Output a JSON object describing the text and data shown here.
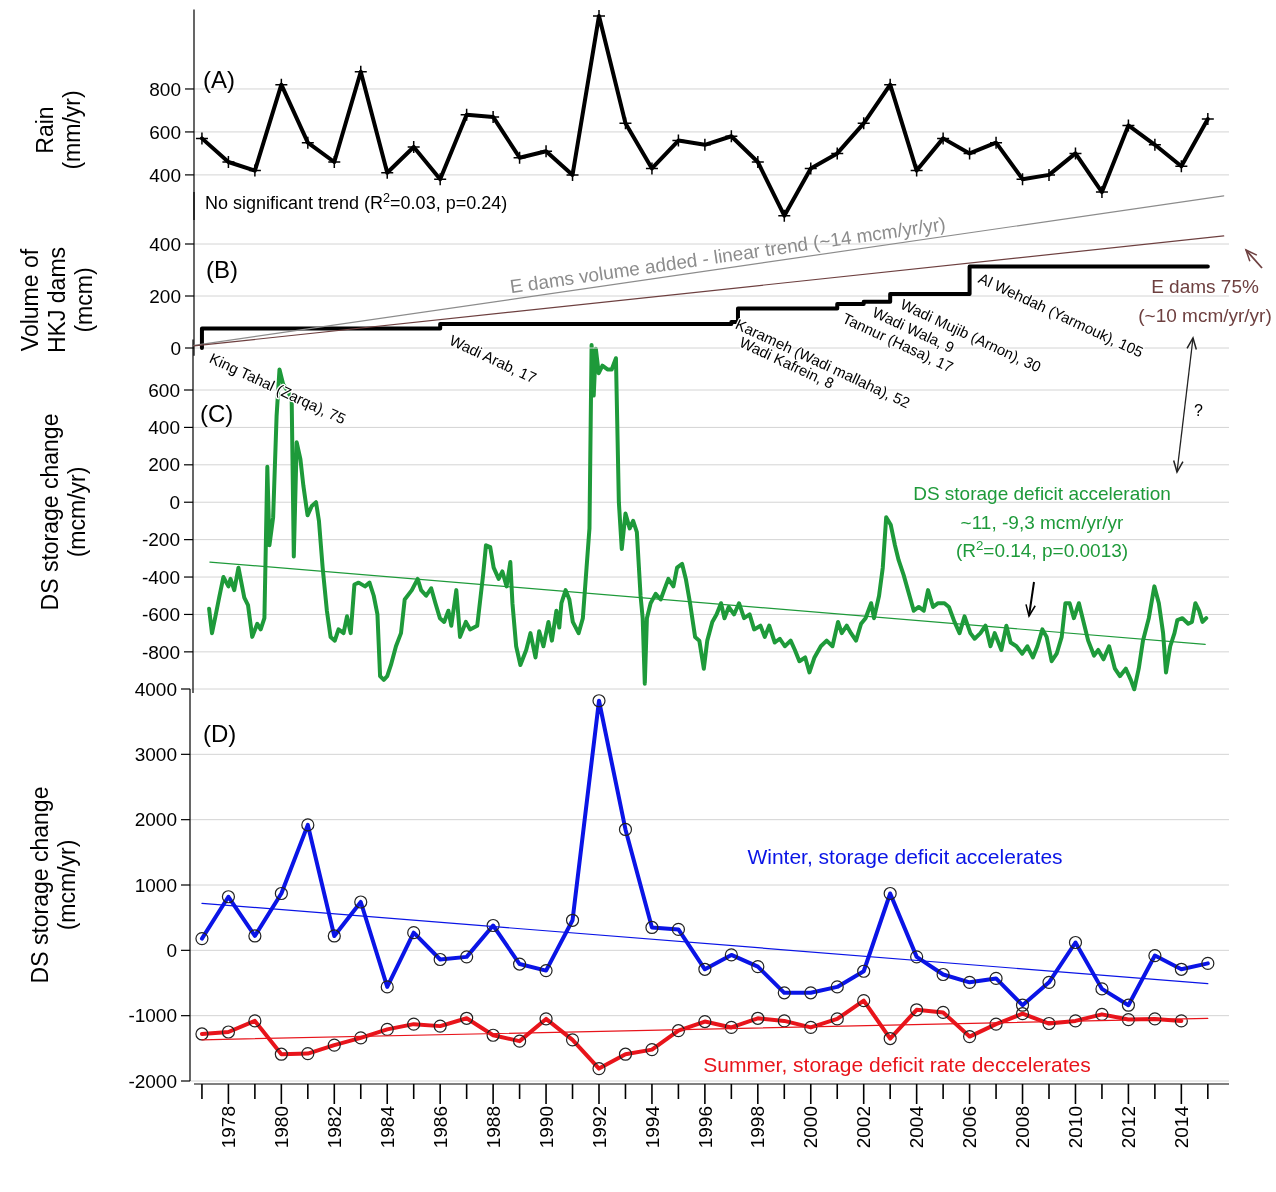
{
  "chart_data": [
    {
      "type": "line",
      "title": "(A)",
      "ylabel": "Rain (mm/yr)",
      "xlim": [
        1976.7,
        2015.8
      ],
      "ylim": [
        190,
        1170
      ],
      "yticks": [
        400,
        600,
        800
      ],
      "grid": "y",
      "tick_labels": "y",
      "x": [
        1977,
        1978,
        1979,
        1980,
        1981,
        1982,
        1983,
        1984,
        1985,
        1986,
        1987,
        1988,
        1989,
        1990,
        1991,
        1992,
        1993,
        1994,
        1995,
        1996,
        1997,
        1998,
        1999,
        2000,
        2001,
        2002,
        2003,
        2004,
        2005,
        2006,
        2007,
        2008,
        2009,
        2010,
        2011,
        2012,
        2013,
        2014,
        2015
      ],
      "series": [
        {
          "color": "#000000",
          "marker": "cross",
          "values": [
            570,
            460,
            420,
            820,
            550,
            460,
            880,
            410,
            530,
            380,
            680,
            670,
            480,
            510,
            400,
            1140,
            640,
            430,
            560,
            540,
            580,
            460,
            210,
            430,
            500,
            640,
            820,
            420,
            570,
            500,
            550,
            380,
            400,
            500,
            320,
            630,
            540,
            440,
            660
          ]
        }
      ],
      "annotations": [
        "No significant trend (R$^{2}$=0.03,  p=0.24)"
      ]
    },
    {
      "type": "step",
      "title": "(B)",
      "ylabel": "Volume of HKJ dams (mcm)",
      "xlim": [
        1976.7,
        2015.8
      ],
      "ylim": [
        -30,
        600
      ],
      "yticks": [
        0,
        200,
        400
      ],
      "grid": "y",
      "tick_labels": "y",
      "series": [
        {
          "color": "#000000",
          "x": [
            1977,
            1977,
            1986,
            1997,
            1997.25,
            2001,
            2002,
            2003,
            2006,
            2015
          ],
          "values": [
            0,
            75,
            92,
            100,
            152,
            169,
            178,
            208,
            313,
            313
          ]
        },
        {
          "type": "line",
          "name": "E dams volume added - linear trend (~14 mcm/yr/yr)",
          "color": "#8c8c8c",
          "x": [
            1976.7,
            2015.6
          ],
          "values": [
            10,
            585
          ]
        },
        {
          "type": "line",
          "name": "E dams 75% (~10 mcm/yr/yr)",
          "color": "#6e4040",
          "x": [
            1976.7,
            2015.6
          ],
          "values": [
            8,
            431
          ]
        }
      ],
      "annotations": [
        "King Tahal (Zarqa), 75",
        "Wadi Arab, 17",
        "Karameh (Wadi mallaha), 52",
        "Wadi Kafrein, 8",
        "Tannur (Hasa), 17",
        "Wadi Wala, 9",
        "Wadi Mujib (Arnon), 30",
        "Al Wehdah (Yarmouk), 105"
      ]
    },
    {
      "type": "line",
      "title": "(C)",
      "ylabel": "DS storage change (mcm/yr)",
      "xlim": [
        1976.7,
        2015.8
      ],
      "ylim": [
        -1020,
        870
      ],
      "yticks": [
        -800,
        -600,
        -400,
        -200,
        0,
        200,
        400,
        600
      ],
      "grid": "y",
      "tick_labels": "y",
      "series": [
        {
          "color": "#1e9a3a",
          "x": [
            1977.27,
            1977.38,
            1977.51,
            1977.65,
            1977.81,
            1978,
            1978.08,
            1978.22,
            1978.38,
            1978.6,
            1978.74,
            1978.9,
            1979.09,
            1979.22,
            1979.36,
            1979.47,
            1979.55,
            1979.69,
            1979.82,
            1979.93,
            1980.07,
            1980.26,
            1980.39,
            1980.47,
            1980.58,
            1980.72,
            1980.83,
            1980.99,
            1981.15,
            1981.31,
            1981.42,
            1981.56,
            1981.72,
            1981.86,
            1982.02,
            1982.16,
            1982.35,
            1982.48,
            1982.62,
            1982.76,
            1982.92,
            1983.16,
            1983.33,
            1983.49,
            1983.63,
            1983.73,
            1983.87,
            1984,
            1984.14,
            1984.33,
            1984.52,
            1984.66,
            1984.93,
            1985.15,
            1985.28,
            1985.47,
            1985.66,
            1985.82,
            1985.99,
            1986.15,
            1986.31,
            1986.42,
            1986.61,
            1986.75,
            1986.97,
            1987.13,
            1987.4,
            1987.62,
            1987.73,
            1987.89,
            1988.02,
            1988.21,
            1988.35,
            1988.51,
            1988.65,
            1988.73,
            1988.87,
            1989.03,
            1989.25,
            1989.41,
            1989.6,
            1989.74,
            1989.9,
            1990.09,
            1990.22,
            1990.39,
            1990.5,
            1990.58,
            1990.74,
            1990.88,
            1991.01,
            1991.23,
            1991.39,
            1991.53,
            1991.64,
            1991.72,
            1991.8,
            1991.88,
            1991.99,
            1992.13,
            1992.32,
            1992.48,
            1992.64,
            1992.75,
            1992.86,
            1993,
            1993.16,
            1993.29,
            1993.43,
            1993.57,
            1993.65,
            1993.73,
            1993.81,
            1993.95,
            1994.14,
            1994.33,
            1994.46,
            1994.62,
            1994.81,
            1994.95,
            1995.14,
            1995.28,
            1995.44,
            1995.63,
            1995.79,
            1995.96,
            1996.09,
            1996.28,
            1996.44,
            1996.61,
            1996.74,
            1996.9,
            1997.1,
            1997.29,
            1997.48,
            1997.69,
            1997.86,
            1998.1,
            1998.26,
            1998.43,
            1998.64,
            1998.83,
            1999.02,
            1999.24,
            1999.4,
            1999.57,
            1999.79,
            1999.95,
            2000.14,
            2000.38,
            2000.6,
            2000.82,
            2001.03,
            2001.17,
            2001.36,
            2001.52,
            2001.71,
            2001.9,
            2002.07,
            2002.28,
            2002.39,
            2002.58,
            2002.72,
            2002.85,
            2003.02,
            2003.18,
            2003.32,
            2003.51,
            2003.67,
            2003.89,
            2004.08,
            2004.27,
            2004.43,
            2004.62,
            2004.81,
            2005.05,
            2005.22,
            2005.43,
            2005.62,
            2005.81,
            2006.03,
            2006.19,
            2006.41,
            2006.6,
            2006.79,
            2006.95,
            2007.2,
            2007.39,
            2007.55,
            2007.77,
            2007.99,
            2008.18,
            2008.39,
            2008.56,
            2008.75,
            2008.91,
            2009.1,
            2009.29,
            2009.48,
            2009.62,
            2009.78,
            2009.94,
            2010.13,
            2010.27,
            2010.48,
            2010.7,
            2010.86,
            2011.06,
            2011.27,
            2011.49,
            2011.68,
            2011.9,
            2012.09,
            2012.22,
            2012.39,
            2012.55,
            2012.77,
            2012.98,
            2013.15,
            2013.31,
            2013.42,
            2013.58,
            2013.74,
            2013.85,
            2014.04,
            2014.26,
            2014.4,
            2014.53,
            2014.67,
            2014.8,
            2014.94
          ],
          "values": [
            -570,
            -700,
            -610,
            -510,
            -400,
            -450,
            -410,
            -470,
            -350,
            -510,
            -550,
            -720,
            -650,
            -680,
            -620,
            190,
            -230,
            -80,
            460,
            710,
            630,
            590,
            550,
            -290,
            320,
            230,
            90,
            -70,
            -20,
            0,
            -100,
            -350,
            -580,
            -720,
            -740,
            -680,
            -700,
            -610,
            -700,
            -440,
            -430,
            -450,
            -430,
            -500,
            -600,
            -930,
            -950,
            -930,
            -870,
            -770,
            -700,
            -520,
            -470,
            -410,
            -470,
            -500,
            -460,
            -540,
            -620,
            -640,
            -580,
            -660,
            -470,
            -720,
            -640,
            -680,
            -660,
            -390,
            -230,
            -240,
            -350,
            -410,
            -370,
            -450,
            -320,
            -540,
            -770,
            -870,
            -790,
            -700,
            -830,
            -690,
            -770,
            -640,
            -740,
            -580,
            -670,
            -540,
            -470,
            -520,
            -640,
            -700,
            -620,
            -350,
            -140,
            840,
            570,
            820,
            690,
            730,
            710,
            710,
            770,
            0,
            -250,
            -60,
            -140,
            -100,
            -160,
            -500,
            -620,
            -970,
            -620,
            -540,
            -490,
            -520,
            -470,
            -410,
            -450,
            -350,
            -330,
            -410,
            -540,
            -720,
            -740,
            -890,
            -740,
            -640,
            -600,
            -540,
            -620,
            -560,
            -600,
            -540,
            -620,
            -600,
            -680,
            -660,
            -720,
            -660,
            -750,
            -730,
            -770,
            -740,
            -790,
            -850,
            -830,
            -910,
            -830,
            -770,
            -740,
            -770,
            -640,
            -700,
            -660,
            -700,
            -740,
            -650,
            -620,
            -540,
            -620,
            -500,
            -350,
            -80,
            -120,
            -230,
            -310,
            -390,
            -470,
            -580,
            -560,
            -580,
            -470,
            -560,
            -540,
            -540,
            -560,
            -640,
            -700,
            -610,
            -700,
            -730,
            -700,
            -660,
            -770,
            -700,
            -790,
            -660,
            -750,
            -770,
            -810,
            -770,
            -830,
            -770,
            -680,
            -720,
            -850,
            -810,
            -720,
            -540,
            -540,
            -620,
            -540,
            -620,
            -740,
            -820,
            -790,
            -840,
            -770,
            -890,
            -930,
            -890,
            -950,
            -1000,
            -890,
            -740,
            -620,
            -450,
            -540,
            -700,
            -910,
            -770,
            -700,
            -630,
            -620,
            -650,
            -640,
            -540,
            -580,
            -640,
            -620
          ]
        },
        {
          "name": "DS storage deficit acceleration ~11, -9,3 mcm/yr/yr (R$^{2}$=0.14, p=0.0013)",
          "color": "#1e9a3a",
          "x": [
            1977.3,
            2014.9
          ],
          "values": [
            -320,
            -760
          ]
        }
      ],
      "annotations": [
        "?"
      ]
    },
    {
      "type": "line",
      "title": "(D)",
      "ylabel": "DS storage change (mcm/yr)",
      "xlim": [
        1976.7,
        2015.8
      ],
      "ylim": [
        -2000,
        4000
      ],
      "yticks": [
        -2000,
        -1000,
        0,
        1000,
        2000,
        3000,
        4000
      ],
      "grid": "y",
      "xticks": [
        {
          "value": 1977,
          "label": null
        },
        1978,
        {
          "value": 1979,
          "label": null
        },
        1980,
        {
          "value": 1981,
          "label": null
        },
        1982,
        {
          "value": 1983,
          "label": null
        },
        1984,
        {
          "value": 1985,
          "label": null
        },
        1986,
        {
          "value": 1987,
          "label": null
        },
        1988,
        {
          "value": 1989,
          "label": null
        },
        1990,
        {
          "value": 1991,
          "label": null
        },
        1992,
        {
          "value": 1993,
          "label": null
        },
        1994,
        {
          "value": 1995,
          "label": null
        },
        1996,
        {
          "value": 1997,
          "label": null
        },
        1998,
        {
          "value": 1999,
          "label": null
        },
        2000,
        {
          "value": 2001,
          "label": null
        },
        2002,
        {
          "value": 2003,
          "label": null
        },
        2004,
        {
          "value": 2005,
          "label": null
        },
        2006,
        {
          "value": 2007,
          "label": null
        },
        2008,
        {
          "value": 2009,
          "label": null
        },
        2010,
        {
          "value": 2011,
          "label": null
        },
        2012,
        {
          "value": 2013,
          "label": null
        },
        2014,
        {
          "value": 2015,
          "label": null
        }
      ],
      "x": [
        1977,
        1978,
        1979,
        1980,
        1981,
        1982,
        1983,
        1984,
        1985,
        1986,
        1987,
        1988,
        1989,
        1990,
        1991,
        1992,
        1993,
        1994,
        1995,
        1996,
        1997,
        1998,
        1999,
        2000,
        2001,
        2002,
        2003,
        2004,
        2005,
        2006,
        2007,
        2008,
        2009,
        2010,
        2011,
        2012,
        2013,
        2014,
        2015
      ],
      "series": [
        {
          "name": "Winter, storage deficit accelerates",
          "color": "#0a14e6",
          "marker": "circle",
          "values": [
            180,
            820,
            220,
            870,
            1920,
            220,
            740,
            -560,
            270,
            -140,
            -100,
            380,
            -210,
            -310,
            460,
            3820,
            1850,
            350,
            320,
            -290,
            -70,
            -250,
            -650,
            -650,
            -560,
            -320,
            870,
            -100,
            -370,
            -490,
            -430,
            -840,
            -490,
            120,
            -590,
            -840,
            -80,
            -290,
            -200
          ]
        },
        {
          "name": "Summer, storage deficit rate deccelerates",
          "color": "#e8141b",
          "marker": "circle",
          "values": [
            -1280,
            -1250,
            -1080,
            -1590,
            -1580,
            -1450,
            -1340,
            -1210,
            -1130,
            -1160,
            -1040,
            -1300,
            -1390,
            -1050,
            -1370,
            -1810,
            -1590,
            -1520,
            -1230,
            -1090,
            -1180,
            -1040,
            -1080,
            -1180,
            -1050,
            -770,
            -1350,
            -910,
            -950,
            -1320,
            -1130,
            -970,
            -1120,
            -1080,
            -980,
            -1060,
            -1050,
            -1080,
            null
          ]
        },
        {
          "color": "#0a14e6",
          "x": [
            1977,
            2015
          ],
          "values": [
            720,
            -510
          ]
        },
        {
          "color": "#e8141b",
          "x": [
            1977,
            2015
          ],
          "values": [
            -1370,
            -1040
          ]
        }
      ]
    }
  ]
}
